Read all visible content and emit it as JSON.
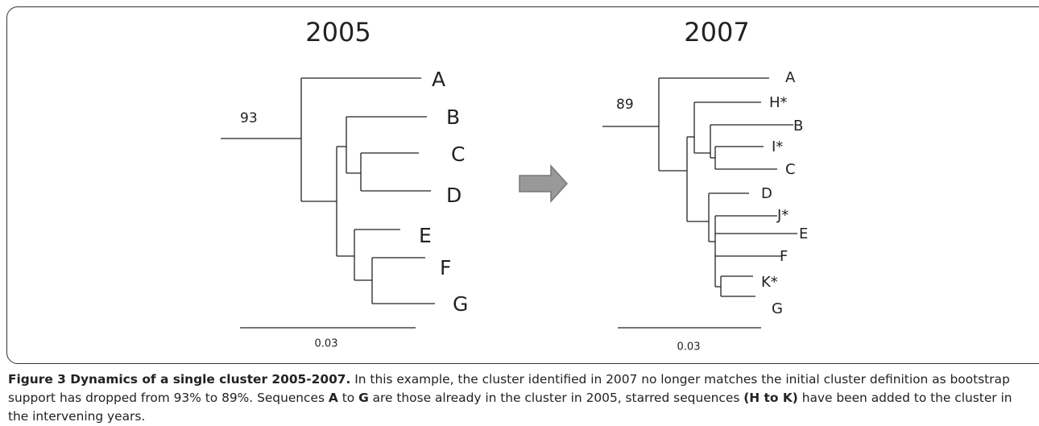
{
  "figure": {
    "trees": [
      {
        "year": "2005",
        "bootstrap": "93",
        "scale": "0.03",
        "leaves": [
          "A",
          "B",
          "C",
          "D",
          "E",
          "F",
          "G"
        ]
      },
      {
        "year": "2007",
        "bootstrap": "89",
        "scale": "0.03",
        "leaves": [
          "A",
          "H*",
          "B",
          "I*",
          "C",
          "D",
          "J*",
          "E",
          "F",
          "K*",
          "G"
        ]
      }
    ],
    "caption": [
      {
        "text": "Figure 3 Dynamics of a single cluster 2005-2007.",
        "bold": true
      },
      {
        "text": " In this example, the cluster identified in 2007 no longer matches the initial cluster definition as bootstrap support has dropped from 93% to 89%. Sequences ",
        "bold": false
      },
      {
        "text": "A",
        "bold": true
      },
      {
        "text": " to ",
        "bold": false
      },
      {
        "text": "G",
        "bold": true
      },
      {
        "text": " are those already in the cluster in 2005, starred sequences ",
        "bold": false
      },
      {
        "text": "(H to K)",
        "bold": true
      },
      {
        "text": " have been added to the cluster in the intervening years.",
        "bold": false
      }
    ]
  }
}
